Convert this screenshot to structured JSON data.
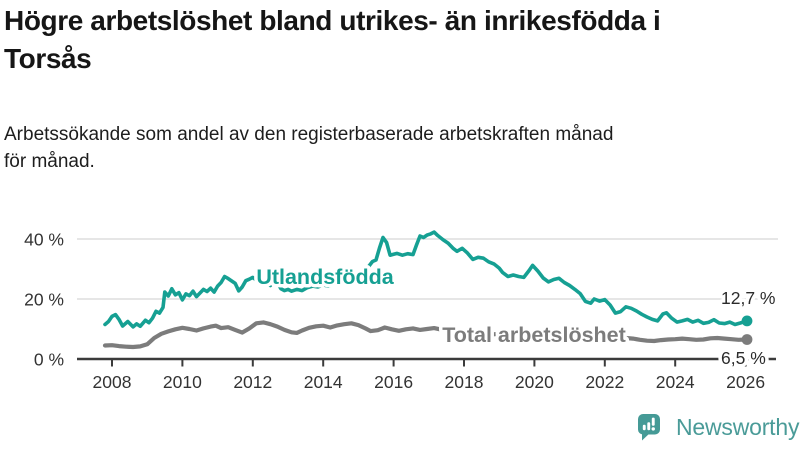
{
  "page": {
    "title_lines": [
      "Högre arbetslöshet bland utrikes- än inrikesfödda i",
      "Torsås"
    ],
    "subtitle_lines": [
      "Arbetssökande som andel av den registerbaserade arbetskraften månad",
      "för månad."
    ]
  },
  "branding": {
    "logo_text": "Newsworthy",
    "logo_color": "#4a9b98",
    "icon_name": "newsworthy-bar-chart-bubble-icon",
    "icon_color": "#459a96"
  },
  "chart_data": {
    "type": "line",
    "title": "Högre arbetslöshet bland utrikes- än inrikesfödda i Torsås",
    "subtitle": "Arbetssökande som andel av den registerbaserade arbetskraften månad för månad.",
    "unit": "%",
    "grid": "horizontal-only",
    "x_axis": {
      "range": [
        2007.6,
        2026.3
      ],
      "ticks": [
        2008,
        2010,
        2012,
        2014,
        2016,
        2018,
        2020,
        2022,
        2024,
        2026
      ],
      "tick_labels": [
        "2008",
        "2010",
        "2012",
        "2014",
        "2016",
        "2018",
        "2020",
        "2022",
        "2024",
        "2026"
      ]
    },
    "y_axis": {
      "range": [
        0,
        45
      ],
      "ticks": [
        0,
        20,
        40
      ],
      "tick_labels": [
        "0 %",
        "20 %",
        "40 %"
      ]
    },
    "colors": {
      "grid": "#d8d8d8",
      "axis": "#3b3b3b",
      "tick_text": "#333333",
      "end_label_text": "#2b2b2b"
    },
    "series": [
      {
        "name": "Utlandsfödda",
        "color": "#16a093",
        "end_label": "12,7 %",
        "end_value": 12.7,
        "points": [
          [
            2007.8,
            11.5
          ],
          [
            2007.9,
            12.5
          ],
          [
            2008.0,
            14.2
          ],
          [
            2008.1,
            14.8
          ],
          [
            2008.2,
            13.2
          ],
          [
            2008.3,
            11.0
          ],
          [
            2008.45,
            12.5
          ],
          [
            2008.6,
            10.7
          ],
          [
            2008.7,
            11.7
          ],
          [
            2008.8,
            10.9
          ],
          [
            2008.95,
            12.9
          ],
          [
            2009.05,
            12.1
          ],
          [
            2009.15,
            13.6
          ],
          [
            2009.25,
            15.9
          ],
          [
            2009.35,
            15.3
          ],
          [
            2009.45,
            17.2
          ],
          [
            2009.5,
            22.3
          ],
          [
            2009.6,
            21.0
          ],
          [
            2009.7,
            23.4
          ],
          [
            2009.8,
            21.4
          ],
          [
            2009.9,
            22.1
          ],
          [
            2010.0,
            19.7
          ],
          [
            2010.1,
            21.7
          ],
          [
            2010.2,
            21.1
          ],
          [
            2010.3,
            22.6
          ],
          [
            2010.4,
            20.8
          ],
          [
            2010.5,
            22.0
          ],
          [
            2010.6,
            23.2
          ],
          [
            2010.7,
            22.5
          ],
          [
            2010.8,
            23.6
          ],
          [
            2010.9,
            22.3
          ],
          [
            2011.0,
            24.3
          ],
          [
            2011.1,
            25.5
          ],
          [
            2011.2,
            27.5
          ],
          [
            2011.3,
            26.8
          ],
          [
            2011.4,
            26.0
          ],
          [
            2011.5,
            25.2
          ],
          [
            2011.6,
            22.7
          ],
          [
            2011.7,
            24.0
          ],
          [
            2011.8,
            26.1
          ],
          [
            2011.9,
            26.6
          ],
          [
            2012.0,
            27.2
          ],
          [
            2012.1,
            26.3
          ],
          [
            2012.2,
            25.6
          ],
          [
            2012.3,
            26.5
          ],
          [
            2012.4,
            25.1
          ],
          [
            2012.5,
            24.5
          ],
          [
            2012.6,
            26.2
          ],
          [
            2012.7,
            25.3
          ],
          [
            2012.8,
            23.4
          ],
          [
            2012.9,
            22.8
          ],
          [
            2013.0,
            23.2
          ],
          [
            2013.1,
            22.6
          ],
          [
            2013.25,
            23.2
          ],
          [
            2013.4,
            22.8
          ],
          [
            2013.55,
            23.8
          ],
          [
            2013.7,
            24.3
          ],
          [
            2013.85,
            24.0
          ],
          [
            2014.0,
            24.7
          ],
          [
            2014.15,
            24.3
          ],
          [
            2014.3,
            25.0
          ],
          [
            2014.45,
            24.6
          ],
          [
            2014.6,
            25.3
          ],
          [
            2014.75,
            25.0
          ],
          [
            2014.9,
            25.8
          ],
          [
            2015.05,
            25.5
          ],
          [
            2015.2,
            27.5
          ],
          [
            2015.3,
            31.0
          ],
          [
            2015.4,
            32.5
          ],
          [
            2015.5,
            33.0
          ],
          [
            2015.6,
            37.0
          ],
          [
            2015.7,
            40.5
          ],
          [
            2015.8,
            38.8
          ],
          [
            2015.9,
            34.6
          ],
          [
            2016.0,
            34.9
          ],
          [
            2016.1,
            35.2
          ],
          [
            2016.25,
            34.6
          ],
          [
            2016.4,
            35.1
          ],
          [
            2016.55,
            34.8
          ],
          [
            2016.65,
            38.0
          ],
          [
            2016.75,
            41.0
          ],
          [
            2016.85,
            40.5
          ],
          [
            2016.95,
            41.3
          ],
          [
            2017.05,
            41.7
          ],
          [
            2017.15,
            42.3
          ],
          [
            2017.25,
            41.2
          ],
          [
            2017.4,
            39.8
          ],
          [
            2017.55,
            38.6
          ],
          [
            2017.7,
            36.8
          ],
          [
            2017.8,
            35.9
          ],
          [
            2017.95,
            36.9
          ],
          [
            2018.1,
            35.3
          ],
          [
            2018.25,
            33.2
          ],
          [
            2018.4,
            33.9
          ],
          [
            2018.55,
            33.6
          ],
          [
            2018.7,
            32.4
          ],
          [
            2018.85,
            31.7
          ],
          [
            2019.0,
            30.3
          ],
          [
            2019.1,
            28.8
          ],
          [
            2019.25,
            27.5
          ],
          [
            2019.4,
            28.0
          ],
          [
            2019.55,
            27.5
          ],
          [
            2019.7,
            27.2
          ],
          [
            2019.85,
            29.5
          ],
          [
            2019.95,
            31.2
          ],
          [
            2020.1,
            29.3
          ],
          [
            2020.25,
            27.0
          ],
          [
            2020.4,
            25.7
          ],
          [
            2020.55,
            26.5
          ],
          [
            2020.7,
            26.9
          ],
          [
            2020.85,
            25.5
          ],
          [
            2021.0,
            24.5
          ],
          [
            2021.15,
            23.2
          ],
          [
            2021.3,
            21.8
          ],
          [
            2021.45,
            19.2
          ],
          [
            2021.6,
            18.6
          ],
          [
            2021.7,
            20.0
          ],
          [
            2021.85,
            19.3
          ],
          [
            2022.0,
            19.8
          ],
          [
            2022.15,
            18.0
          ],
          [
            2022.3,
            15.3
          ],
          [
            2022.45,
            15.8
          ],
          [
            2022.6,
            17.4
          ],
          [
            2022.75,
            16.9
          ],
          [
            2022.9,
            16.0
          ],
          [
            2023.05,
            14.9
          ],
          [
            2023.2,
            14.0
          ],
          [
            2023.35,
            13.2
          ],
          [
            2023.5,
            12.7
          ],
          [
            2023.65,
            15.0
          ],
          [
            2023.75,
            15.4
          ],
          [
            2023.9,
            13.6
          ],
          [
            2024.05,
            12.3
          ],
          [
            2024.2,
            12.7
          ],
          [
            2024.35,
            13.2
          ],
          [
            2024.5,
            12.3
          ],
          [
            2024.65,
            12.9
          ],
          [
            2024.8,
            11.9
          ],
          [
            2024.95,
            12.2
          ],
          [
            2025.1,
            13.1
          ],
          [
            2025.25,
            12.0
          ],
          [
            2025.4,
            11.8
          ],
          [
            2025.55,
            12.3
          ],
          [
            2025.7,
            11.5
          ],
          [
            2025.85,
            12.0
          ],
          [
            2026.04,
            12.7
          ]
        ]
      },
      {
        "name": "Total arbetslöshet",
        "color": "#7c7c7c",
        "end_label": "6,5 %",
        "end_value": 6.5,
        "points": [
          [
            2007.8,
            4.5
          ],
          [
            2008.0,
            4.6
          ],
          [
            2008.2,
            4.3
          ],
          [
            2008.4,
            4.1
          ],
          [
            2008.6,
            4.0
          ],
          [
            2008.8,
            4.2
          ],
          [
            2009.0,
            4.9
          ],
          [
            2009.2,
            7.0
          ],
          [
            2009.4,
            8.4
          ],
          [
            2009.6,
            9.2
          ],
          [
            2009.8,
            9.9
          ],
          [
            2010.0,
            10.4
          ],
          [
            2010.2,
            10.0
          ],
          [
            2010.4,
            9.5
          ],
          [
            2010.6,
            10.2
          ],
          [
            2010.8,
            10.8
          ],
          [
            2010.95,
            11.1
          ],
          [
            2011.1,
            10.3
          ],
          [
            2011.3,
            10.6
          ],
          [
            2011.5,
            9.7
          ],
          [
            2011.7,
            8.8
          ],
          [
            2011.9,
            10.2
          ],
          [
            2012.1,
            11.9
          ],
          [
            2012.3,
            12.2
          ],
          [
            2012.5,
            11.6
          ],
          [
            2012.7,
            10.8
          ],
          [
            2012.9,
            9.7
          ],
          [
            2013.1,
            8.9
          ],
          [
            2013.25,
            8.7
          ],
          [
            2013.4,
            9.5
          ],
          [
            2013.6,
            10.4
          ],
          [
            2013.8,
            10.9
          ],
          [
            2014.0,
            11.1
          ],
          [
            2014.2,
            10.5
          ],
          [
            2014.4,
            11.2
          ],
          [
            2014.6,
            11.6
          ],
          [
            2014.8,
            11.9
          ],
          [
            2015.0,
            11.3
          ],
          [
            2015.2,
            10.2
          ],
          [
            2015.35,
            9.3
          ],
          [
            2015.55,
            9.6
          ],
          [
            2015.75,
            10.5
          ],
          [
            2015.95,
            9.9
          ],
          [
            2016.15,
            9.4
          ],
          [
            2016.35,
            9.9
          ],
          [
            2016.55,
            10.2
          ],
          [
            2016.75,
            9.7
          ],
          [
            2016.95,
            10.0
          ],
          [
            2017.15,
            10.3
          ],
          [
            2017.35,
            9.8
          ],
          [
            2017.55,
            9.4
          ],
          [
            2017.75,
            9.1
          ],
          [
            2017.95,
            9.3
          ],
          [
            2018.15,
            8.9
          ],
          [
            2018.35,
            8.6
          ],
          [
            2018.55,
            8.8
          ],
          [
            2018.75,
            8.4
          ],
          [
            2019.0,
            8.1
          ],
          [
            2019.2,
            7.9
          ],
          [
            2019.4,
            8.2
          ],
          [
            2019.6,
            7.8
          ],
          [
            2019.8,
            7.6
          ],
          [
            2020.0,
            8.0
          ],
          [
            2020.2,
            8.6
          ],
          [
            2020.4,
            9.0
          ],
          [
            2020.6,
            8.7
          ],
          [
            2020.8,
            8.3
          ],
          [
            2021.0,
            8.0
          ],
          [
            2021.2,
            7.7
          ],
          [
            2021.4,
            7.4
          ],
          [
            2021.6,
            7.2
          ],
          [
            2021.8,
            7.0
          ],
          [
            2022.0,
            7.1
          ],
          [
            2022.2,
            6.9
          ],
          [
            2022.4,
            6.8
          ],
          [
            2022.6,
            7.0
          ],
          [
            2022.8,
            6.8
          ],
          [
            2023.0,
            6.4
          ],
          [
            2023.2,
            6.1
          ],
          [
            2023.4,
            6.0
          ],
          [
            2023.6,
            6.3
          ],
          [
            2023.8,
            6.5
          ],
          [
            2024.0,
            6.6
          ],
          [
            2024.2,
            6.8
          ],
          [
            2024.4,
            6.6
          ],
          [
            2024.6,
            6.4
          ],
          [
            2024.8,
            6.5
          ],
          [
            2025.0,
            6.9
          ],
          [
            2025.2,
            7.0
          ],
          [
            2025.4,
            6.8
          ],
          [
            2025.6,
            6.6
          ],
          [
            2025.8,
            6.4
          ],
          [
            2026.04,
            6.5
          ]
        ]
      }
    ],
    "legend_position": "inline-labels-on-lines"
  }
}
